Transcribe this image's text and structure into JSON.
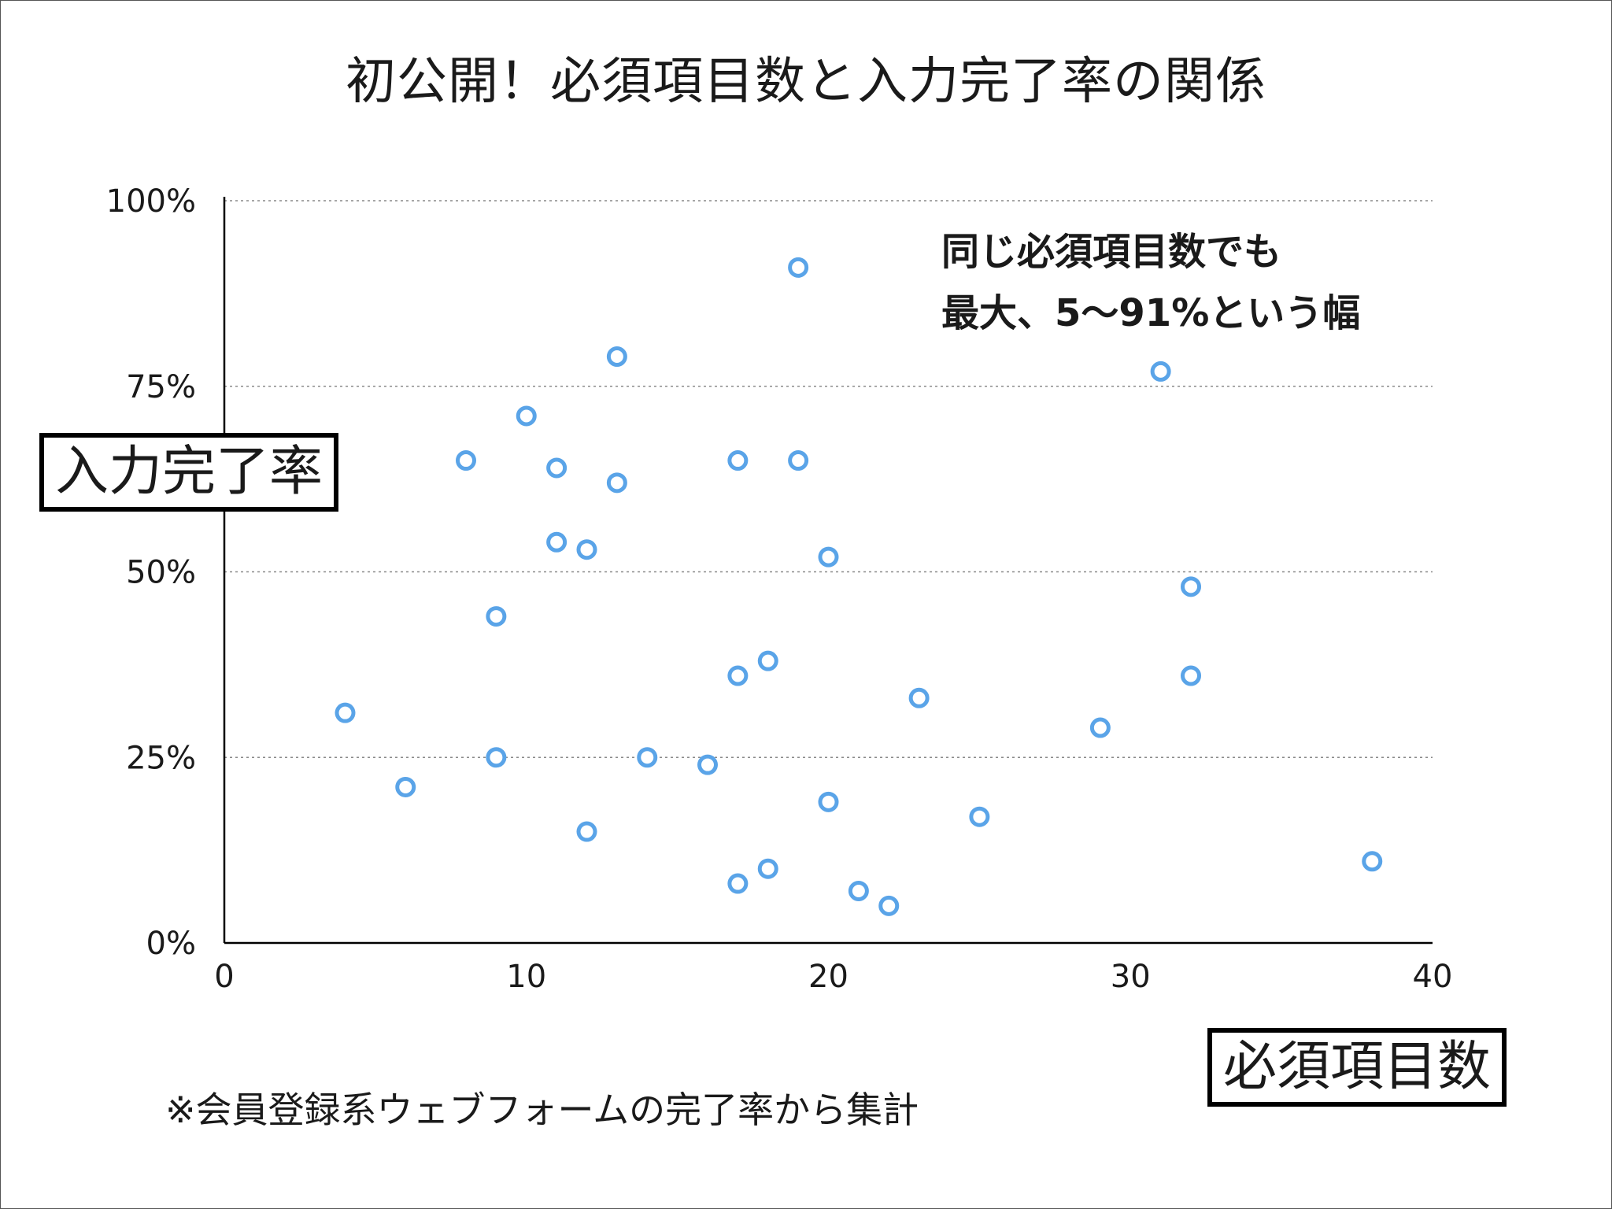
{
  "title": "初公開！必須項目数と入力完了率の関係",
  "annotation": {
    "line1": "同じ必須項目数でも",
    "line2": "最大、5〜91%という幅"
  },
  "footnote": "※会員登録系ウェブフォームの完了率から集計",
  "chart_data": {
    "type": "scatter",
    "xlabel": "必須項目数",
    "ylabel": "入力完了率",
    "xlim": [
      0,
      40
    ],
    "ylim": [
      0,
      100
    ],
    "x_ticks": [
      0,
      10,
      20,
      30,
      40
    ],
    "x_tick_labels": [
      "0",
      "10",
      "20",
      "30",
      "40"
    ],
    "y_ticks": [
      0,
      25,
      50,
      75,
      100
    ],
    "y_tick_labels": [
      "0%",
      "25%",
      "50%",
      "75%",
      "100%"
    ],
    "grid": "horizontal dotted",
    "marker_color": "#5aa4e8",
    "points": [
      {
        "x": 4,
        "y": 31
      },
      {
        "x": 6,
        "y": 21
      },
      {
        "x": 8,
        "y": 65
      },
      {
        "x": 9,
        "y": 44
      },
      {
        "x": 9,
        "y": 25
      },
      {
        "x": 10,
        "y": 71
      },
      {
        "x": 11,
        "y": 64
      },
      {
        "x": 11,
        "y": 54
      },
      {
        "x": 12,
        "y": 53
      },
      {
        "x": 12,
        "y": 15
      },
      {
        "x": 13,
        "y": 79
      },
      {
        "x": 13,
        "y": 62
      },
      {
        "x": 14,
        "y": 25
      },
      {
        "x": 16,
        "y": 24
      },
      {
        "x": 17,
        "y": 65
      },
      {
        "x": 17,
        "y": 36
      },
      {
        "x": 17,
        "y": 8
      },
      {
        "x": 18,
        "y": 38
      },
      {
        "x": 18,
        "y": 10
      },
      {
        "x": 19,
        "y": 91
      },
      {
        "x": 19,
        "y": 65
      },
      {
        "x": 20,
        "y": 52
      },
      {
        "x": 20,
        "y": 19
      },
      {
        "x": 21,
        "y": 7
      },
      {
        "x": 22,
        "y": 5
      },
      {
        "x": 23,
        "y": 33
      },
      {
        "x": 25,
        "y": 17
      },
      {
        "x": 29,
        "y": 29
      },
      {
        "x": 31,
        "y": 77
      },
      {
        "x": 32,
        "y": 48
      },
      {
        "x": 32,
        "y": 36
      },
      {
        "x": 38,
        "y": 11
      }
    ]
  }
}
